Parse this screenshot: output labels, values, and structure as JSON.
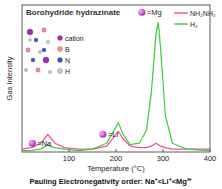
{
  "chart_data": {
    "type": "line",
    "title": "Borohydride hydrazinate",
    "x_label": "Temperature (°C)",
    "y_label": "Gas Intensity",
    "x": [
      0,
      20,
      40,
      50,
      55,
      60,
      70,
      90,
      120,
      150,
      180,
      195,
      205,
      215,
      230,
      250,
      265,
      275,
      285,
      290,
      295,
      305,
      320,
      350,
      400
    ],
    "series": [
      {
        "name": "NH₂NH₂",
        "color": "#f0509a",
        "values": [
          2,
          3,
          6,
          10,
          12,
          10,
          6,
          3,
          2,
          2,
          4,
          10,
          14,
          9,
          4,
          3,
          3,
          4,
          6,
          5,
          4,
          3,
          2,
          2,
          2
        ]
      },
      {
        "name": "H₂",
        "color": "#3ccc3c",
        "values": [
          1,
          1,
          2,
          4,
          5,
          4,
          3,
          2,
          1,
          2,
          6,
          14,
          20,
          12,
          5,
          6,
          15,
          40,
          80,
          88,
          70,
          25,
          6,
          2,
          1
        ]
      }
    ],
    "xlim": [
      0,
      400
    ],
    "ylim": [
      0,
      100
    ],
    "xticks": [
      100,
      200,
      300,
      400
    ],
    "tick_labels": "x",
    "legend": "top-right",
    "annotations": [
      {
        "text": "=Na",
        "x": 22,
        "y": 6
      },
      {
        "text": "=Li",
        "x": 172,
        "y": 12
      },
      {
        "text": "=Mg",
        "x": 255,
        "y": 95
      }
    ],
    "atom_legend": [
      "cation",
      "B",
      "N",
      "H"
    ],
    "footer": "Pauling Electronegativity order: Na⁺<Li⁺<Mg²⁺"
  }
}
